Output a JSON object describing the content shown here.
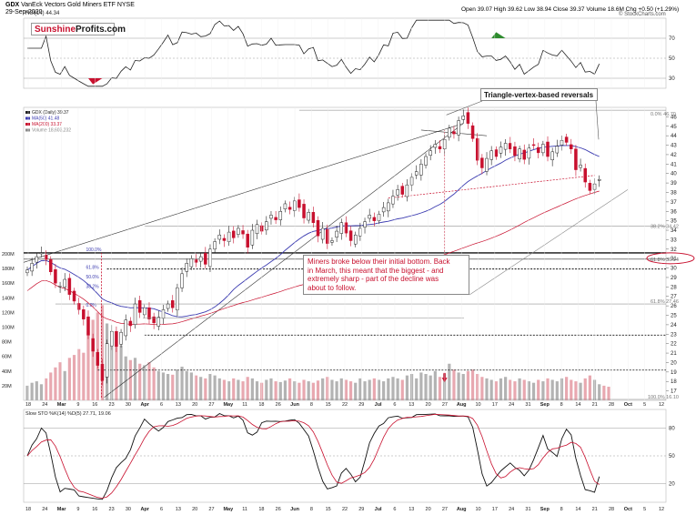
{
  "header": {
    "ticker": "GDX",
    "name": "VanEck Vectors Gold Miners ETF",
    "exchange": "NYSE",
    "date": "29-Sep-2020",
    "ohlc": "Open 39.07  High 39.62  Low 38.94  Close 39.37  Volume 18.6M  Chg +0.50 (+1.29%)",
    "watermark": "© StockCharts.com",
    "rsi_label": "RSI(14) 44.34",
    "price_legend": [
      "GDX (Daily) 39.37",
      "MA(50) 41.48",
      "MA(200) 33.37",
      "Volume 18,603,232"
    ],
    "sto_label": "Slow STO %K(14) %D(5) 27.71, 19.06"
  },
  "logo": {
    "part1": "Sunshine",
    "part2": "Profits.com"
  },
  "annotations": {
    "vertex": "Triangle-vertex-based reversals",
    "note_lines": [
      "Miners broke below their initial bottom. Back",
      "in March, this meant that the biggest - and",
      "extremely sharp -  part of the decline was",
      "about to follow."
    ],
    "fib_top": "0.0% 46.70",
    "fib_382": "38.2% 34.42",
    "fib_618": "61.8% 30.94",
    "fib_618b": "61.8% 27.46",
    "fib_100": "100.0% 16.10",
    "fib_left_100": "100.0%",
    "fib_left_618": "61.8%",
    "fib_left_50": "50.0%",
    "fib_left_382": "38.2%",
    "fib_left_0": "0.0%"
  },
  "colors": {
    "up": "#ffffff",
    "down": "#c8102e",
    "ma50": "#3b3bb0",
    "ma200": "#c8102e",
    "vol_up": "#b3b3b3",
    "vol_down": "#e8a8b0",
    "rsi_over": "#2e8b2e",
    "rsi_under": "#c8102e"
  },
  "chart_data": {
    "type": "candlestick",
    "ylim": [
      16,
      47
    ],
    "y_ticks": [
      17,
      18,
      19,
      20,
      21,
      22,
      23,
      24,
      25,
      26,
      27,
      28,
      29,
      30,
      31,
      32,
      33,
      34,
      35,
      36,
      37,
      38,
      39,
      40,
      41,
      42,
      43,
      44,
      45,
      46
    ],
    "x_labels": [
      "18",
      "24",
      "Mar",
      "9",
      "16",
      "23",
      "30",
      "Apr",
      "6",
      "13",
      "20",
      "27",
      "May",
      "11",
      "18",
      "26",
      "Jun",
      "8",
      "15",
      "22",
      "29",
      "Jul",
      "6",
      "13",
      "20",
      "27",
      "Aug",
      "10",
      "17",
      "24",
      "31",
      "Sep",
      "8",
      "14",
      "21",
      "28",
      "Oct",
      "5",
      "12"
    ],
    "close": [
      29.8,
      30.5,
      31.2,
      31.6,
      30.9,
      29.6,
      28.4,
      28.1,
      28.8,
      27.2,
      26.5,
      25.6,
      24.6,
      22.9,
      21.2,
      19.7,
      18.1,
      22.0,
      23.3,
      21.7,
      23.2,
      24.5,
      23.9,
      26.2,
      25.3,
      25.8,
      24.6,
      24.2,
      24.8,
      25.6,
      26.2,
      25.8,
      27.9,
      29.4,
      30.5,
      31.0,
      30.6,
      31.2,
      30.4,
      32.0,
      32.8,
      33.5,
      32.9,
      33.8,
      33.2,
      34.2,
      33.6,
      32.2,
      34.0,
      34.6,
      33.9,
      34.9,
      35.6,
      35.1,
      36.0,
      36.8,
      36.2,
      37.1,
      36.4,
      35.3,
      35.9,
      34.8,
      33.4,
      34.2,
      32.6,
      32.9,
      33.9,
      34.8,
      33.7,
      32.9,
      33.5,
      34.2,
      34.9,
      35.6,
      35.0,
      35.7,
      36.4,
      36.9,
      37.6,
      38.3,
      37.8,
      38.8,
      39.6,
      40.2,
      41.0,
      41.8,
      42.4,
      43.1,
      42.6,
      43.6,
      44.8,
      44.2,
      45.6,
      46.1,
      45.3,
      43.7,
      41.4,
      40.6,
      41.6,
      42.4,
      41.8,
      42.8,
      43.2,
      42.6,
      41.9,
      42.6,
      41.5,
      42.7,
      43.0,
      42.2,
      43.1,
      41.8,
      42.3,
      42.9,
      43.5,
      43.3,
      42.6,
      40.4,
      40.9,
      39.1,
      38.2,
      38.9,
      39.37
    ],
    "volume_M": [
      20,
      24,
      26,
      22,
      30,
      38,
      45,
      52,
      40,
      58,
      62,
      70,
      65,
      95,
      110,
      120,
      130,
      105,
      90,
      80,
      75,
      60,
      55,
      58,
      50,
      48,
      52,
      45,
      40,
      38,
      36,
      35,
      42,
      46,
      40,
      38,
      34,
      32,
      30,
      36,
      34,
      30,
      28,
      26,
      30,
      28,
      26,
      32,
      30,
      26,
      24,
      28,
      30,
      26,
      25,
      27,
      30,
      26,
      24,
      28,
      26,
      24,
      27,
      30,
      32,
      28,
      26,
      30,
      28,
      26,
      24,
      30,
      26,
      28,
      30,
      28,
      26,
      30,
      32,
      30,
      28,
      34,
      36,
      30,
      38,
      36,
      34,
      40,
      32,
      36,
      50,
      42,
      38,
      36,
      40,
      42,
      36,
      32,
      30,
      28,
      26,
      30,
      32,
      28,
      26,
      30,
      28,
      26,
      24,
      28,
      26,
      30,
      28,
      26,
      30,
      32,
      28,
      26,
      24,
      30,
      34,
      28,
      22,
      20,
      18.6
    ],
    "ma50_last": 41.48,
    "ma200_last": 33.37,
    "rsi_last": 44.34,
    "sto_k_last": 27.71,
    "sto_d_last": 19.06,
    "rsi_ticks": [
      30,
      50,
      70
    ],
    "sto_ticks": [
      20,
      50,
      80
    ],
    "volume_ticks": [
      "20M",
      "40M",
      "60M",
      "80M",
      "100M",
      "120M",
      "140M",
      "160M",
      "180M",
      "200M"
    ]
  }
}
